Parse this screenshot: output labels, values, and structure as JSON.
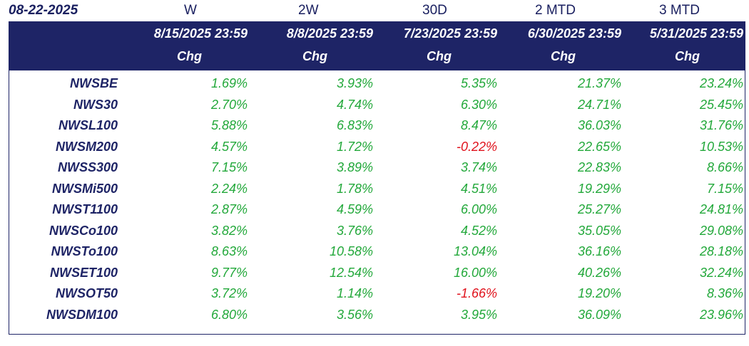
{
  "header": {
    "date": "08-22-2025",
    "periods": [
      "W",
      "2W",
      "30D",
      "2 MTD",
      "3 MTD"
    ]
  },
  "table": {
    "columns": [
      {
        "date": "8/15/2025 23:59",
        "sub": "Chg"
      },
      {
        "date": "8/8/2025 23:59",
        "sub": "Chg"
      },
      {
        "date": "7/23/2025 23:59",
        "sub": "Chg"
      },
      {
        "date": "6/30/2025 23:59",
        "sub": "Chg"
      },
      {
        "date": "5/31/2025 23:59",
        "sub": "Chg"
      }
    ],
    "rows": [
      {
        "name": "NWSBE",
        "values": [
          "1.69%",
          "3.93%",
          "5.35%",
          "21.37%",
          "23.24%"
        ]
      },
      {
        "name": "NWS30",
        "values": [
          "2.70%",
          "4.74%",
          "6.30%",
          "24.71%",
          "25.45%"
        ]
      },
      {
        "name": "NWSL100",
        "values": [
          "5.88%",
          "6.83%",
          "8.47%",
          "36.03%",
          "31.76%"
        ]
      },
      {
        "name": "NWSM200",
        "values": [
          "4.57%",
          "1.72%",
          "-0.22%",
          "22.65%",
          "10.53%"
        ]
      },
      {
        "name": "NWSS300",
        "values": [
          "7.15%",
          "3.89%",
          "3.74%",
          "22.83%",
          "8.66%"
        ]
      },
      {
        "name": "NWSMi500",
        "values": [
          "2.24%",
          "1.78%",
          "4.51%",
          "19.29%",
          "7.15%"
        ]
      },
      {
        "name": "NWST1100",
        "values": [
          "2.87%",
          "4.59%",
          "6.00%",
          "25.27%",
          "24.81%"
        ]
      },
      {
        "name": "NWSCo100",
        "values": [
          "3.82%",
          "3.76%",
          "4.52%",
          "35.05%",
          "29.08%"
        ]
      },
      {
        "name": "NWSTo100",
        "values": [
          "8.63%",
          "10.58%",
          "13.04%",
          "36.16%",
          "28.18%"
        ]
      },
      {
        "name": "NWSET100",
        "values": [
          "9.77%",
          "12.54%",
          "16.00%",
          "40.26%",
          "32.24%"
        ]
      },
      {
        "name": "NWSOT50",
        "values": [
          "3.72%",
          "1.14%",
          "-1.66%",
          "19.20%",
          "8.36%"
        ]
      },
      {
        "name": "NWSDM100",
        "values": [
          "6.80%",
          "3.56%",
          "3.95%",
          "36.09%",
          "23.96%"
        ]
      }
    ]
  },
  "colors": {
    "header_bg": "#1e2466",
    "positive": "#22a83a",
    "negative": "#e0121c",
    "name_text": "#1e2466"
  }
}
